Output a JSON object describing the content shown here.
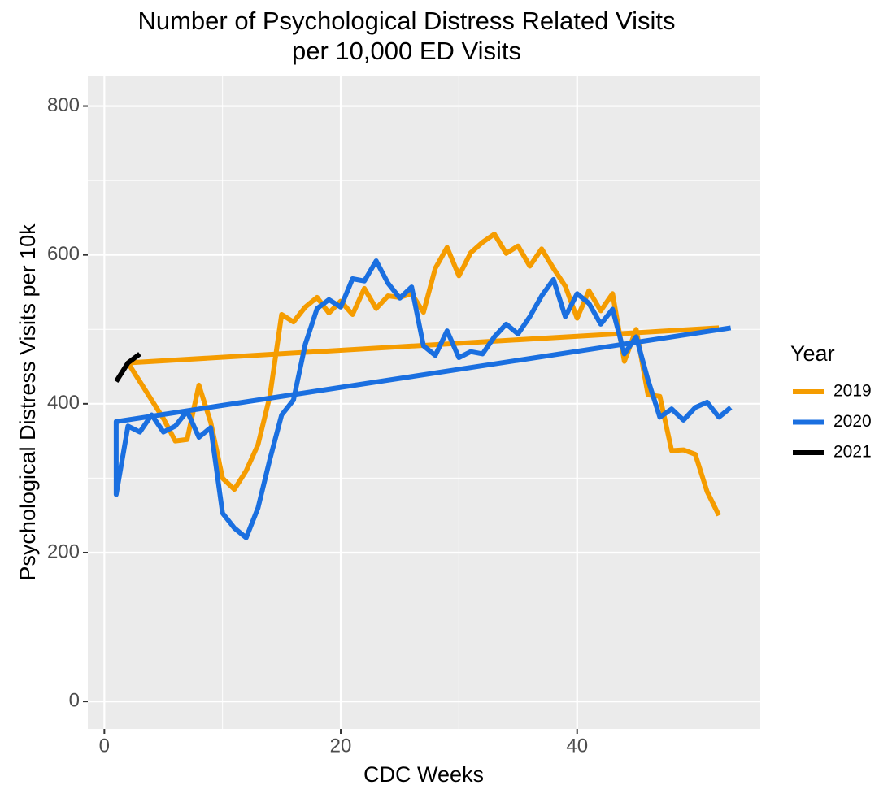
{
  "chart_data": {
    "type": "line",
    "title": [
      "Number of Psychological Distress Related Visits",
      "per 10,000 ED Visits"
    ],
    "x_label": "CDC Weeks",
    "y_label": "Psychological Distress Visits per 10k",
    "legend_title": "Year",
    "xlim": [
      -1.4,
      55.5
    ],
    "ylim": [
      -37,
      841
    ],
    "xticks": [
      0,
      20,
      40
    ],
    "yticks": [
      0,
      200,
      400,
      600,
      800
    ],
    "grid": true,
    "series": [
      {
        "name": "2019",
        "color": "#f59c00",
        "x": [
          52,
          2,
          3,
          4,
          5,
          6,
          7,
          8,
          9,
          10,
          11,
          12,
          13,
          14,
          15,
          16,
          17,
          18,
          19,
          20,
          21,
          22,
          23,
          24,
          25,
          26,
          27,
          28,
          29,
          30,
          31,
          32,
          33,
          34,
          35,
          36,
          37,
          38,
          39,
          40,
          41,
          42,
          43,
          44,
          45,
          46,
          47,
          48,
          49,
          50,
          51,
          52
        ],
        "values": [
          502,
          455,
          430,
          405,
          380,
          350,
          352,
          425,
          375,
          300,
          285,
          310,
          345,
          410,
          520,
          510,
          530,
          543,
          522,
          538,
          520,
          555,
          528,
          545,
          543,
          548,
          523,
          582,
          610,
          572,
          603,
          617,
          628,
          602,
          612,
          585,
          608,
          582,
          558,
          515,
          552,
          525,
          548,
          457,
          500,
          412,
          410,
          337,
          338,
          332,
          282,
          250
        ]
      },
      {
        "name": "2020",
        "color": "#1a6fe0",
        "x": [
          53,
          1,
          1,
          2,
          3,
          4,
          5,
          6,
          7,
          8,
          9,
          10,
          11,
          12,
          13,
          14,
          15,
          16,
          17,
          18,
          19,
          20,
          21,
          22,
          23,
          24,
          25,
          26,
          27,
          28,
          29,
          30,
          31,
          32,
          33,
          34,
          35,
          36,
          37,
          38,
          39,
          40,
          41,
          42,
          43,
          44,
          45,
          46,
          47,
          48,
          49,
          50,
          51,
          52,
          53
        ],
        "values": [
          502,
          376,
          278,
          370,
          362,
          385,
          362,
          370,
          390,
          355,
          368,
          253,
          233,
          220,
          260,
          325,
          385,
          405,
          480,
          528,
          540,
          530,
          568,
          565,
          592,
          562,
          542,
          557,
          478,
          465,
          498,
          462,
          470,
          467,
          490,
          507,
          494,
          517,
          545,
          567,
          517,
          548,
          535,
          507,
          527,
          467,
          490,
          432,
          382,
          393,
          378,
          395,
          402,
          382,
          395
        ]
      },
      {
        "name": "2021",
        "color": "#000000",
        "x": [
          1,
          2,
          3
        ],
        "values": [
          430,
          455,
          467
        ]
      }
    ]
  }
}
